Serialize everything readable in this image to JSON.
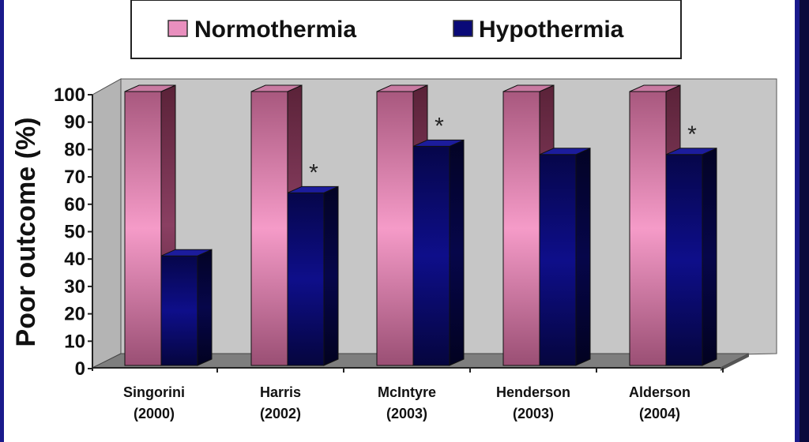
{
  "chart_data": {
    "type": "bar",
    "title": "",
    "xlabel": "",
    "ylabel": "Poor outcome (%)",
    "ylim": [
      0,
      100
    ],
    "yticks": [
      0,
      10,
      20,
      30,
      40,
      50,
      60,
      70,
      80,
      90,
      100
    ],
    "categories": [
      [
        "Singorini",
        "(2000)"
      ],
      [
        "Harris",
        "(2002)"
      ],
      [
        "McIntyre",
        "(2003)"
      ],
      [
        "Henderson",
        "(2003)"
      ],
      [
        "Alderson",
        "(2004)"
      ]
    ],
    "series": [
      {
        "name": "Normothermia",
        "color": "#e98fbe",
        "values": [
          100,
          100,
          100,
          100,
          100
        ]
      },
      {
        "name": "Hypothermia",
        "color": "#0a0a78",
        "values": [
          40,
          63,
          80,
          77,
          77
        ]
      }
    ],
    "significance_marks": [
      "",
      "*",
      "*",
      "",
      "*"
    ],
    "legend_position": "top",
    "grid": false,
    "style": "3d-bar",
    "colors": {
      "wall": "#c8c8c8",
      "floor": "#808080",
      "page_border": "#1a1a8c"
    }
  }
}
